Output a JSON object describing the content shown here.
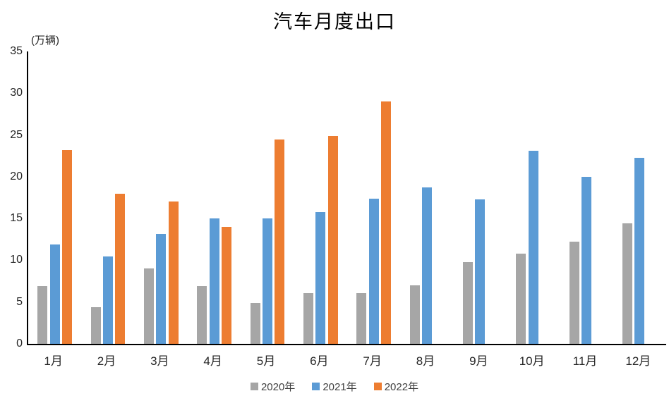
{
  "chart_data": {
    "type": "bar",
    "title": "汽车月度出口",
    "unit_label": "(万辆)",
    "categories": [
      "1月",
      "2月",
      "3月",
      "4月",
      "5月",
      "6月",
      "7月",
      "8月",
      "9月",
      "10月",
      "11月",
      "12月"
    ],
    "series": [
      {
        "name": "2020年",
        "color": "#A6A6A6",
        "values": [
          6.9,
          4.4,
          9.0,
          6.9,
          4.9,
          6.1,
          6.1,
          7.0,
          9.8,
          10.8,
          12.2,
          14.4
        ]
      },
      {
        "name": "2021年",
        "color": "#5B9BD5",
        "values": [
          11.9,
          10.5,
          13.2,
          15.0,
          15.0,
          15.8,
          17.4,
          18.7,
          17.3,
          23.1,
          20.0,
          22.3
        ]
      },
      {
        "name": "2022年",
        "color": "#ED7D31",
        "values": [
          23.2,
          18.0,
          17.0,
          14.0,
          24.5,
          24.9,
          29.0,
          null,
          null,
          null,
          null,
          null
        ]
      }
    ],
    "ylabel": "",
    "xlabel": "",
    "ylim": [
      0,
      35
    ],
    "ytick_step": 5,
    "grid": false,
    "legend_position": "bottom",
    "axis_color": "#000000"
  }
}
